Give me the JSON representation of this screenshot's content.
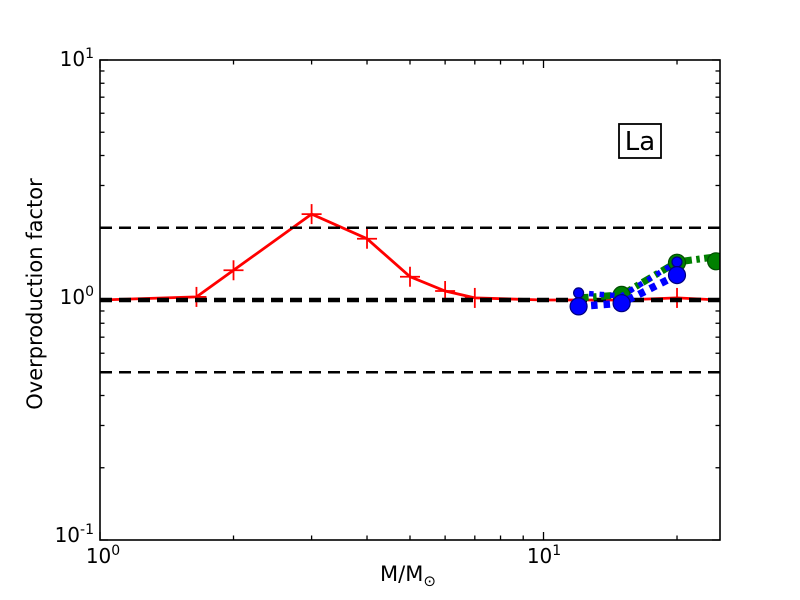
{
  "figure": {
    "background": "#ffffff",
    "plot_background": "#ffffff"
  },
  "chart_data": {
    "type": "line",
    "title": "",
    "xlabel": "M/M⊙",
    "xlabel_main": "M/M",
    "xlabel_sub": "⊙",
    "ylabel": "Overproduction factor",
    "x_scale": "log",
    "y_scale": "log",
    "xlim": [
      1,
      25
    ],
    "ylim": [
      0.1,
      10
    ],
    "grid": false,
    "legend": "none",
    "annotations": [
      {
        "text": "La",
        "x": 17.5,
        "y": 4.0
      }
    ],
    "x_ticks": [
      {
        "value": 1,
        "base": "10",
        "exp": "0"
      },
      {
        "value": 10,
        "base": "10",
        "exp": "1"
      }
    ],
    "x_minor_ticks": [
      2,
      3,
      4,
      5,
      6,
      7,
      8,
      9,
      20
    ],
    "y_ticks": [
      {
        "value": 10,
        "base": "10",
        "exp": "1"
      },
      {
        "value": 1,
        "base": "10",
        "exp": "0"
      },
      {
        "value": 0.1,
        "base": "10",
        "exp": "-1"
      }
    ],
    "y_minor_ticks": [
      0.2,
      0.3,
      0.4,
      0.5,
      0.6,
      0.7,
      0.8,
      0.9,
      2,
      3,
      4,
      5,
      6,
      7,
      8,
      9
    ],
    "reference_lines": [
      {
        "y": 2.0,
        "color": "#000000",
        "style": "dashed",
        "width": 2.4
      },
      {
        "y": 1.0,
        "color": "#000000",
        "style": "dashed",
        "width": 4.6
      },
      {
        "y": 0.5,
        "color": "#000000",
        "style": "dashed",
        "width": 2.4
      }
    ],
    "series": [
      {
        "name": "red-solid-plus-markers",
        "color": "#ff0000",
        "linestyle": "solid",
        "linewidth": 2.8,
        "marker": "plus",
        "markersize": 10,
        "zorder": 1,
        "points": [
          [
            1.0,
            1.0
          ],
          [
            1.65,
            1.03
          ],
          [
            2.0,
            1.33
          ],
          [
            3.0,
            2.28
          ],
          [
            4.0,
            1.8
          ],
          [
            5.0,
            1.25
          ],
          [
            6.0,
            1.09
          ],
          [
            7.0,
            1.02
          ],
          [
            10.0,
            1.0
          ],
          [
            15.0,
            1.0
          ],
          [
            20.0,
            1.02
          ],
          [
            24.9,
            1.0
          ]
        ],
        "marker_points": [
          [
            1.65,
            1.03
          ],
          [
            2.0,
            1.33
          ],
          [
            3.0,
            2.28
          ],
          [
            4.0,
            1.8
          ],
          [
            5.0,
            1.25
          ],
          [
            6.0,
            1.09
          ],
          [
            7.0,
            1.02
          ],
          [
            20.0,
            1.02
          ]
        ]
      },
      {
        "name": "green-dashdot-circle-markers",
        "color": "#008000",
        "edgecolor": "#004d00",
        "linestyle": "dashdot",
        "linewidth": 7,
        "marker": "circle",
        "markersize": 8.5,
        "zorder": 3,
        "points": [
          [
            12,
            1.02
          ],
          [
            15,
            1.05
          ],
          [
            20,
            1.44
          ],
          [
            24.9,
            1.52
          ]
        ],
        "marker_points": [
          [
            15,
            1.05
          ],
          [
            20,
            1.43
          ],
          [
            24.5,
            1.45
          ]
        ]
      },
      {
        "name": "blue-dotted-small-circle-markers",
        "color": "#0000ff",
        "edgecolor": "#000080",
        "linestyle": "dotted",
        "linewidth": 5.5,
        "marker": "circle",
        "markersize": 5,
        "zorder": 4,
        "points": [
          [
            12,
            1.07
          ],
          [
            15,
            1.04
          ],
          [
            20,
            1.44
          ]
        ],
        "marker_points": [
          [
            12,
            1.07
          ],
          [
            20,
            1.44
          ]
        ]
      },
      {
        "name": "blue-dotted-large-circle-markers",
        "color": "#0000ff",
        "edgecolor": "#000080",
        "linestyle": "dotted",
        "linewidth": 7.5,
        "marker": "circle",
        "markersize": 8.5,
        "zorder": 5,
        "points": [
          [
            12,
            0.94
          ],
          [
            15,
            0.97
          ],
          [
            20,
            1.27
          ]
        ],
        "marker_points": [
          [
            12,
            0.94
          ],
          [
            15,
            0.97
          ],
          [
            20,
            1.27
          ]
        ]
      }
    ]
  }
}
